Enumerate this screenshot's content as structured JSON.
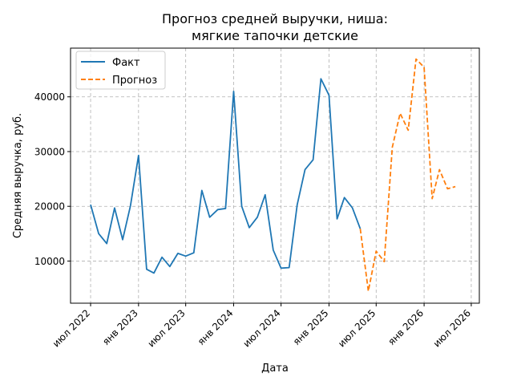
{
  "chart_data": {
    "type": "line",
    "title_line1": "Прогноз средней выручки, ниша:",
    "title_line2": "мягкие тапочки детские",
    "xlabel": "Дата",
    "ylabel": "Средняя выручка, руб.",
    "xlim": [
      "2022-04-15",
      "2026-08-01"
    ],
    "ylim": [
      2300,
      48900
    ],
    "x_ticks": [
      {
        "date": "2022-07-01",
        "label": "июл 2022"
      },
      {
        "date": "2023-01-01",
        "label": "янв 2023"
      },
      {
        "date": "2023-07-01",
        "label": "июл 2023"
      },
      {
        "date": "2024-01-01",
        "label": "янв 2024"
      },
      {
        "date": "2024-07-01",
        "label": "июл 2024"
      },
      {
        "date": "2025-01-01",
        "label": "янв 2025"
      },
      {
        "date": "2025-07-01",
        "label": "июл 2025"
      },
      {
        "date": "2026-01-01",
        "label": "янв 2026"
      },
      {
        "date": "2026-07-01",
        "label": "июл 2026"
      }
    ],
    "y_ticks": [
      10000,
      20000,
      30000,
      40000
    ],
    "grid": true,
    "legend_position": "top-left",
    "series": [
      {
        "name": "Факт",
        "color": "#1f77b4",
        "style": "solid",
        "points": [
          [
            "2022-07-01",
            20300
          ],
          [
            "2022-08-01",
            15000
          ],
          [
            "2022-09-01",
            13200
          ],
          [
            "2022-10-01",
            19700
          ],
          [
            "2022-11-01",
            13900
          ],
          [
            "2022-12-01",
            20100
          ],
          [
            "2023-01-01",
            29300
          ],
          [
            "2023-02-01",
            8500
          ],
          [
            "2023-03-01",
            7800
          ],
          [
            "2023-04-01",
            10700
          ],
          [
            "2023-05-01",
            9000
          ],
          [
            "2023-06-01",
            11400
          ],
          [
            "2023-07-01",
            10900
          ],
          [
            "2023-08-01",
            11500
          ],
          [
            "2023-09-01",
            22900
          ],
          [
            "2023-10-01",
            18000
          ],
          [
            "2023-11-01",
            19400
          ],
          [
            "2023-12-01",
            19600
          ],
          [
            "2024-01-01",
            41000
          ],
          [
            "2024-02-01",
            20000
          ],
          [
            "2024-03-01",
            16100
          ],
          [
            "2024-04-01",
            18000
          ],
          [
            "2024-05-01",
            22100
          ],
          [
            "2024-06-01",
            12000
          ],
          [
            "2024-07-01",
            8700
          ],
          [
            "2024-08-01",
            8800
          ],
          [
            "2024-09-01",
            20300
          ],
          [
            "2024-10-01",
            26700
          ],
          [
            "2024-11-01",
            28500
          ],
          [
            "2024-12-01",
            43300
          ],
          [
            "2025-01-01",
            40300
          ],
          [
            "2025-02-01",
            17700
          ],
          [
            "2025-03-01",
            21600
          ],
          [
            "2025-04-01",
            19700
          ],
          [
            "2025-05-01",
            15900
          ]
        ]
      },
      {
        "name": "Прогноз",
        "color": "#ff7f0e",
        "style": "dashed",
        "points": [
          [
            "2025-05-01",
            15900
          ],
          [
            "2025-06-01",
            4500
          ],
          [
            "2025-07-01",
            11800
          ],
          [
            "2025-08-01",
            9900
          ],
          [
            "2025-09-01",
            30800
          ],
          [
            "2025-10-01",
            37000
          ],
          [
            "2025-11-01",
            33900
          ],
          [
            "2025-12-01",
            46900
          ],
          [
            "2026-01-01",
            45400
          ],
          [
            "2026-02-01",
            21400
          ],
          [
            "2026-03-01",
            26700
          ],
          [
            "2026-04-01",
            23200
          ],
          [
            "2026-05-01",
            23600
          ]
        ]
      }
    ]
  }
}
